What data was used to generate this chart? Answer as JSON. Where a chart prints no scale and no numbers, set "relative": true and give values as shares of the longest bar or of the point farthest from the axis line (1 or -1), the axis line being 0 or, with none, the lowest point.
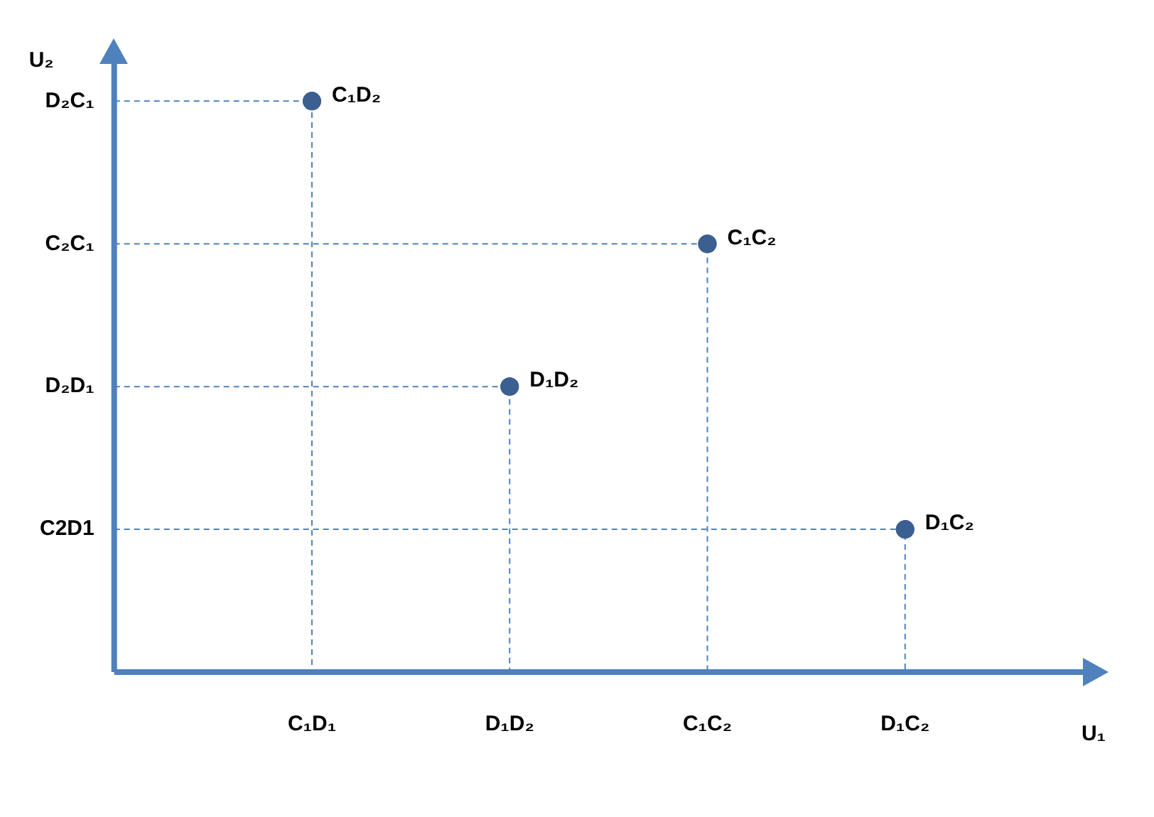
{
  "chart_data": {
    "type": "scatter",
    "xlabel": "U₁",
    "ylabel": "U₂",
    "categories": [
      null,
      "C₁D₁",
      "D₁D₂",
      "C₁C₂",
      "D₁C₂",
      null
    ],
    "y_categories": [
      "D₂C₁",
      "C₂C₁",
      "D₂D₁",
      "C2D1",
      null
    ],
    "relative": true,
    "series": [
      {
        "color": "#3b5f91",
        "values": [
          null,
          1,
          0.5,
          0.75,
          0.25,
          null
        ]
      }
    ],
    "annotations": [
      {
        "text": "C₁D₂",
        "x": "C₁D₁",
        "y": 1
      },
      {
        "text": "D₁D₂",
        "x": "D₁D₂",
        "y": 0.5
      },
      {
        "text": "C₁C₂",
        "x": "C₁C₂",
        "y": 0.75
      },
      {
        "text": "D₁C₂",
        "x": "D₁C₂",
        "y": 0.25
      }
    ],
    "grid": false,
    "legend": false,
    "marker": "circle"
  }
}
